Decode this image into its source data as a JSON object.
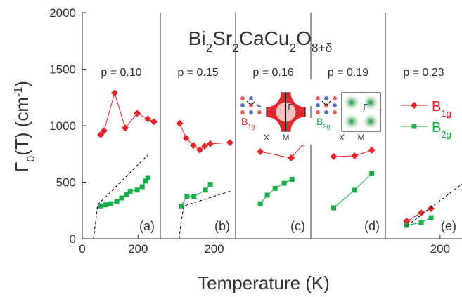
{
  "chart_data": {
    "type": "line",
    "title_parts": [
      {
        "text": "Bi"
      },
      {
        "text": "2",
        "sub": true
      },
      {
        "text": "Sr"
      },
      {
        "text": "2",
        "sub": true
      },
      {
        "text": "CaCu"
      },
      {
        "text": "2",
        "sub": true
      },
      {
        "text": "O"
      },
      {
        "text": "8+δ",
        "sub": true
      }
    ],
    "ylabel_parts": [
      {
        "text": "Γ"
      },
      {
        "text": "0",
        "sub": true
      },
      {
        "text": "(T)  (cm"
      },
      {
        "text": "-1",
        "sup": true
      },
      {
        "text": ")"
      }
    ],
    "xlabel": "Temperature (K)",
    "ylim": [
      0,
      2000
    ],
    "yticks": [
      0,
      500,
      1000,
      1500,
      2000
    ],
    "legend": [
      {
        "name": "B",
        "sub": "1g",
        "color": "#e0242c",
        "marker": "diamond"
      },
      {
        "name": "B",
        "sub": "2g",
        "color": "#1aae4a",
        "marker": "square"
      }
    ],
    "panels": [
      {
        "label": "p = 0.10",
        "tag": "(a)",
        "xlim": [
          0,
          280
        ],
        "xticks": [
          0,
          200
        ],
        "series": [
          {
            "color": "#e0242c",
            "marker": "diamond",
            "x": [
              66,
              78,
              116,
              154,
              197,
              235,
              257
            ],
            "values": [
              920,
              956,
              1290,
              980,
              1110,
              1060,
              1035
            ]
          },
          {
            "color": "#1aae4a",
            "marker": "square",
            "x": [
              66,
              84,
              101,
              124,
              141,
              159,
              172,
              197,
              215,
              227,
              235
            ],
            "values": [
              290,
              300,
              310,
              330,
              360,
              390,
              420,
              430,
              460,
              510,
              540
            ]
          },
          {
            "color": "#000000",
            "dashed": true,
            "x": [
              40,
              48,
              55,
              235
            ],
            "values": [
              0,
              150,
              300,
              740
            ]
          }
        ]
      },
      {
        "label": "p = 0.15",
        "tag": "(b)",
        "xlim": [
          0,
          280
        ],
        "xticks": [
          200
        ],
        "series": [
          {
            "color": "#e0242c",
            "marker": "diamond",
            "x": [
              72,
              96,
              123,
              147,
              165,
              186,
              259
            ],
            "values": [
              1020,
              890,
              825,
              785,
              820,
              840,
              850
            ]
          },
          {
            "color": "#1aae4a",
            "marker": "square",
            "x": [
              77,
              99,
              125,
              168,
              186
            ],
            "values": [
              290,
              375,
              375,
              430,
              480
            ]
          },
          {
            "color": "#000000",
            "dashed": true,
            "x": [
              70,
              78,
              88,
              259
            ],
            "values": [
              0,
              160,
              290,
              420
            ]
          }
        ]
      },
      {
        "label": "p = 0.16",
        "tag": "(c)",
        "xlim": [
          0,
          280
        ],
        "xticks": [],
        "series": [
          {
            "color": "#e0242c",
            "marker": "diamond",
            "x": [
              92,
              207,
              254
            ],
            "values": [
              770,
              714,
              845
            ]
          },
          {
            "color": "#1aae4a",
            "marker": "square",
            "x": [
              92,
              118,
              147,
              181,
              210
            ],
            "values": [
              310,
              385,
              445,
              490,
              525
            ]
          }
        ]
      },
      {
        "label": "p = 0.19",
        "tag": "(d)",
        "xlim": [
          0,
          280
        ],
        "xticks": [],
        "series": [
          {
            "color": "#e0242c",
            "marker": "diamond",
            "x": [
              86,
              164,
              229
            ],
            "values": [
              727,
              733,
              783
            ]
          },
          {
            "color": "#1aae4a",
            "marker": "square",
            "x": [
              86,
              164,
              229
            ],
            "values": [
              273,
              429,
              578
            ]
          }
        ]
      },
      {
        "label": "p = 0.23",
        "tag": "(e)",
        "xlim": [
          0,
          280
        ],
        "xticks": [
          200
        ],
        "series": [
          {
            "color": "#e0242c",
            "marker": "diamond",
            "x": [
              78,
              131,
              167
            ],
            "values": [
              155,
              230,
              267
            ]
          },
          {
            "color": "#1aae4a",
            "marker": "square",
            "x": [
              78,
              131,
              167
            ],
            "values": [
              118,
              143,
              186
            ]
          },
          {
            "color": "#000000",
            "dashed": true,
            "x": [
              78,
              280
            ],
            "values": [
              112,
              484
            ]
          }
        ]
      }
    ],
    "insets": [
      {
        "panel": 2,
        "sym": "B",
        "sub": "1g",
        "color": "#e0242c",
        "x_label": "X",
        "m_label": "M",
        "g_label": "Γ"
      },
      {
        "panel": 3,
        "sym": "B",
        "sub": "2g",
        "color": "#1aae4a",
        "x_label": "X",
        "m_label": "M",
        "g_label": "Γ"
      }
    ]
  }
}
